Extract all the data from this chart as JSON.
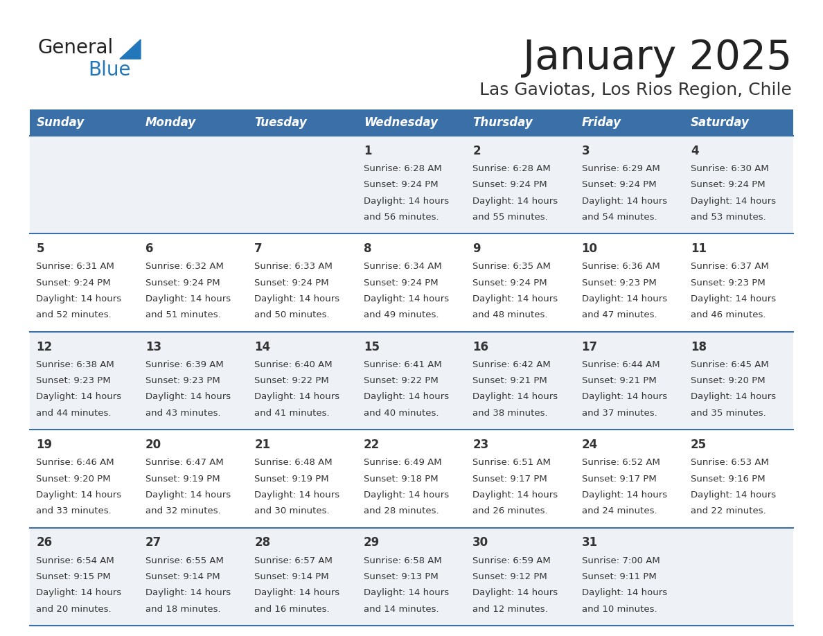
{
  "title": "January 2025",
  "subtitle": "Las Gaviotas, Los Rios Region, Chile",
  "days_of_week": [
    "Sunday",
    "Monday",
    "Tuesday",
    "Wednesday",
    "Thursday",
    "Friday",
    "Saturday"
  ],
  "header_bg": "#3a6fa8",
  "header_text": "#ffffff",
  "row_bg_odd": "#eef2f7",
  "row_bg_even": "#ffffff",
  "cell_text": "#333333",
  "separator_color": "#3a6fa8",
  "title_color": "#222222",
  "subtitle_color": "#333333",
  "logo_general_color": "#222222",
  "logo_blue_color": "#2277bb",
  "weeks": [
    [
      {
        "day": null
      },
      {
        "day": null
      },
      {
        "day": null
      },
      {
        "day": 1,
        "sunrise": "6:28 AM",
        "sunset": "9:24 PM",
        "daylight": "14 hours and 56 minutes."
      },
      {
        "day": 2,
        "sunrise": "6:28 AM",
        "sunset": "9:24 PM",
        "daylight": "14 hours and 55 minutes."
      },
      {
        "day": 3,
        "sunrise": "6:29 AM",
        "sunset": "9:24 PM",
        "daylight": "14 hours and 54 minutes."
      },
      {
        "day": 4,
        "sunrise": "6:30 AM",
        "sunset": "9:24 PM",
        "daylight": "14 hours and 53 minutes."
      }
    ],
    [
      {
        "day": 5,
        "sunrise": "6:31 AM",
        "sunset": "9:24 PM",
        "daylight": "14 hours and 52 minutes."
      },
      {
        "day": 6,
        "sunrise": "6:32 AM",
        "sunset": "9:24 PM",
        "daylight": "14 hours and 51 minutes."
      },
      {
        "day": 7,
        "sunrise": "6:33 AM",
        "sunset": "9:24 PM",
        "daylight": "14 hours and 50 minutes."
      },
      {
        "day": 8,
        "sunrise": "6:34 AM",
        "sunset": "9:24 PM",
        "daylight": "14 hours and 49 minutes."
      },
      {
        "day": 9,
        "sunrise": "6:35 AM",
        "sunset": "9:24 PM",
        "daylight": "14 hours and 48 minutes."
      },
      {
        "day": 10,
        "sunrise": "6:36 AM",
        "sunset": "9:23 PM",
        "daylight": "14 hours and 47 minutes."
      },
      {
        "day": 11,
        "sunrise": "6:37 AM",
        "sunset": "9:23 PM",
        "daylight": "14 hours and 46 minutes."
      }
    ],
    [
      {
        "day": 12,
        "sunrise": "6:38 AM",
        "sunset": "9:23 PM",
        "daylight": "14 hours and 44 minutes."
      },
      {
        "day": 13,
        "sunrise": "6:39 AM",
        "sunset": "9:23 PM",
        "daylight": "14 hours and 43 minutes."
      },
      {
        "day": 14,
        "sunrise": "6:40 AM",
        "sunset": "9:22 PM",
        "daylight": "14 hours and 41 minutes."
      },
      {
        "day": 15,
        "sunrise": "6:41 AM",
        "sunset": "9:22 PM",
        "daylight": "14 hours and 40 minutes."
      },
      {
        "day": 16,
        "sunrise": "6:42 AM",
        "sunset": "9:21 PM",
        "daylight": "14 hours and 38 minutes."
      },
      {
        "day": 17,
        "sunrise": "6:44 AM",
        "sunset": "9:21 PM",
        "daylight": "14 hours and 37 minutes."
      },
      {
        "day": 18,
        "sunrise": "6:45 AM",
        "sunset": "9:20 PM",
        "daylight": "14 hours and 35 minutes."
      }
    ],
    [
      {
        "day": 19,
        "sunrise": "6:46 AM",
        "sunset": "9:20 PM",
        "daylight": "14 hours and 33 minutes."
      },
      {
        "day": 20,
        "sunrise": "6:47 AM",
        "sunset": "9:19 PM",
        "daylight": "14 hours and 32 minutes."
      },
      {
        "day": 21,
        "sunrise": "6:48 AM",
        "sunset": "9:19 PM",
        "daylight": "14 hours and 30 minutes."
      },
      {
        "day": 22,
        "sunrise": "6:49 AM",
        "sunset": "9:18 PM",
        "daylight": "14 hours and 28 minutes."
      },
      {
        "day": 23,
        "sunrise": "6:51 AM",
        "sunset": "9:17 PM",
        "daylight": "14 hours and 26 minutes."
      },
      {
        "day": 24,
        "sunrise": "6:52 AM",
        "sunset": "9:17 PM",
        "daylight": "14 hours and 24 minutes."
      },
      {
        "day": 25,
        "sunrise": "6:53 AM",
        "sunset": "9:16 PM",
        "daylight": "14 hours and 22 minutes."
      }
    ],
    [
      {
        "day": 26,
        "sunrise": "6:54 AM",
        "sunset": "9:15 PM",
        "daylight": "14 hours and 20 minutes."
      },
      {
        "day": 27,
        "sunrise": "6:55 AM",
        "sunset": "9:14 PM",
        "daylight": "14 hours and 18 minutes."
      },
      {
        "day": 28,
        "sunrise": "6:57 AM",
        "sunset": "9:14 PM",
        "daylight": "14 hours and 16 minutes."
      },
      {
        "day": 29,
        "sunrise": "6:58 AM",
        "sunset": "9:13 PM",
        "daylight": "14 hours and 14 minutes."
      },
      {
        "day": 30,
        "sunrise": "6:59 AM",
        "sunset": "9:12 PM",
        "daylight": "14 hours and 12 minutes."
      },
      {
        "day": 31,
        "sunrise": "7:00 AM",
        "sunset": "9:11 PM",
        "daylight": "14 hours and 10 minutes."
      },
      {
        "day": null
      }
    ]
  ]
}
